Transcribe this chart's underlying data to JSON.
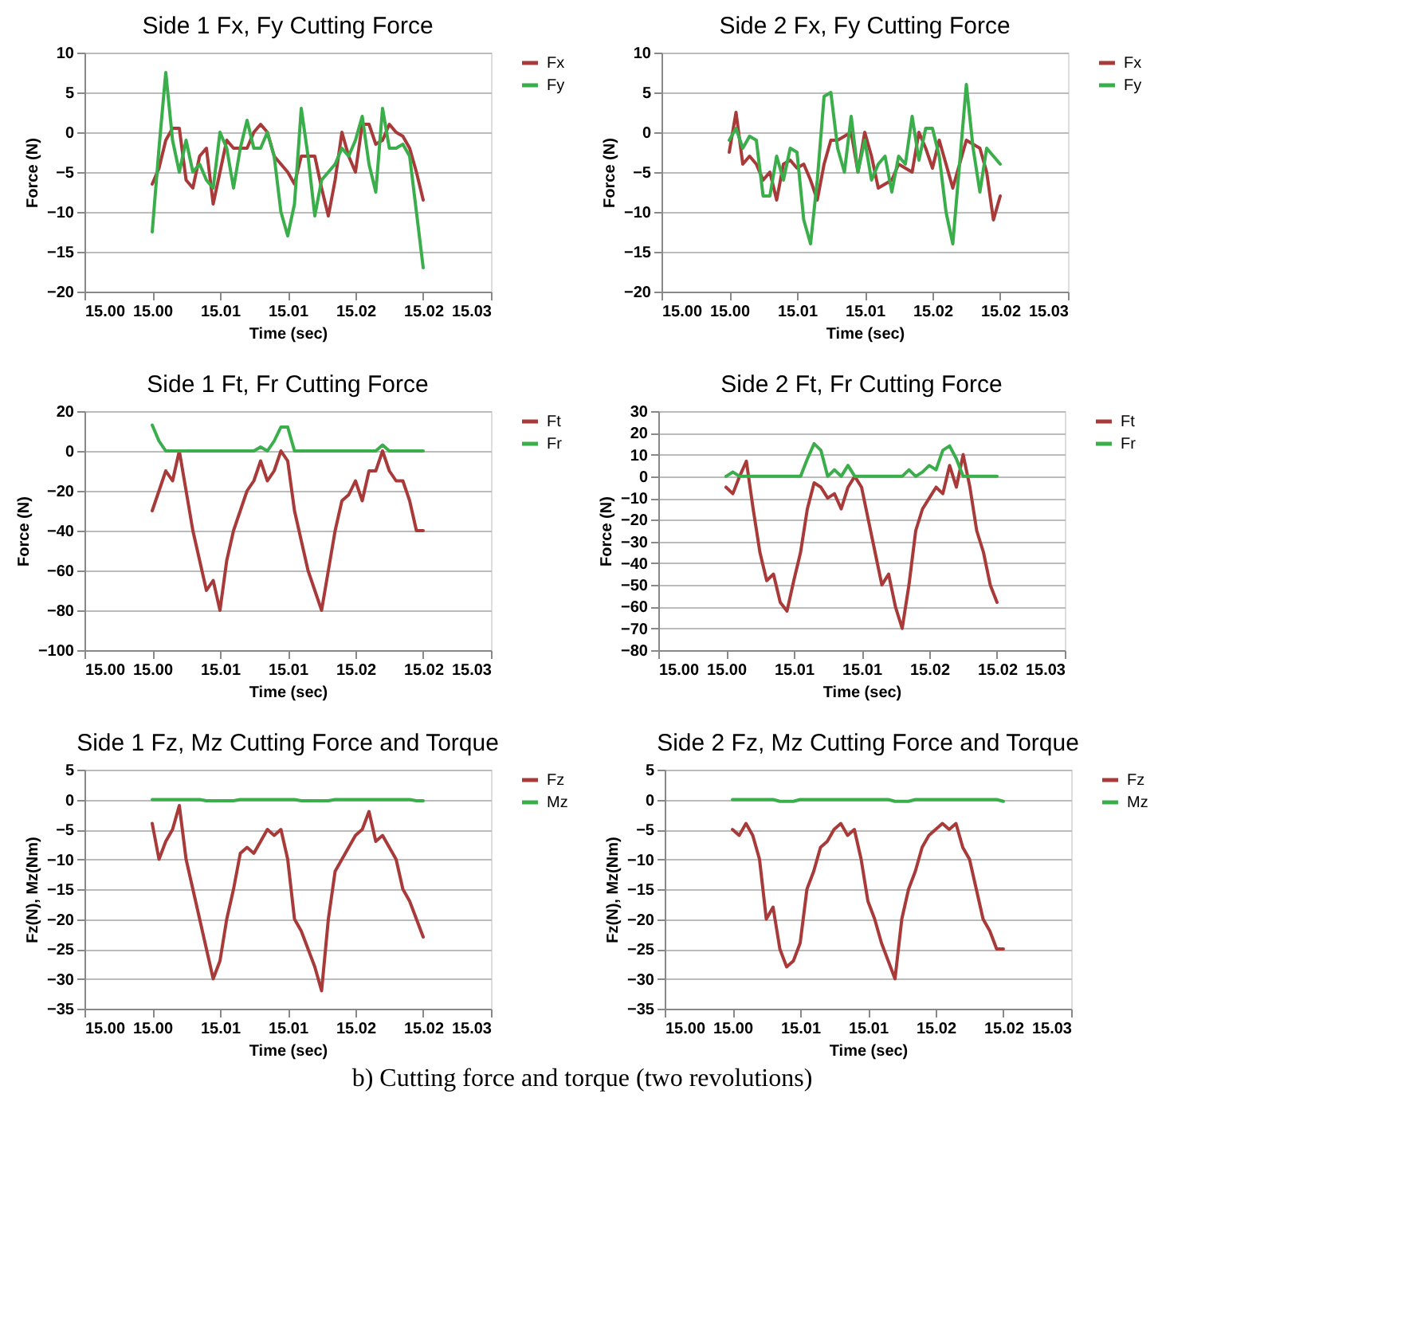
{
  "chart_data": [
    {
      "type": "line",
      "title": "Side 1 Fx, Fy Cutting Force",
      "xlabel": "Time (sec)",
      "ylabel": "Force (N)",
      "xlim": [
        14.995,
        15.025
      ],
      "xticks": [
        {
          "value": 14.995,
          "label": "15.00"
        },
        {
          "value": 15.0,
          "label": "15.00"
        },
        {
          "value": 15.005,
          "label": "15.01"
        },
        {
          "value": 15.01,
          "label": "15.01"
        },
        {
          "value": 15.015,
          "label": "15.02"
        },
        {
          "value": 15.02,
          "label": "15.02"
        },
        {
          "value": 15.025,
          "label": "15.03"
        }
      ],
      "ylim": [
        -20,
        10
      ],
      "yticks": [
        -20,
        -15,
        -10,
        -5,
        0,
        5,
        10
      ],
      "grid": "y",
      "legend": "right",
      "x": [
        15.0,
        15.0005,
        15.001,
        15.0015,
        15.002,
        15.0025,
        15.003,
        15.0035,
        15.004,
        15.0045,
        15.005,
        15.0055,
        15.006,
        15.0065,
        15.007,
        15.0075,
        15.008,
        15.0085,
        15.009,
        15.0095,
        15.01,
        15.0105,
        15.011,
        15.0115,
        15.012,
        15.0125,
        15.013,
        15.0135,
        15.014,
        15.0145,
        15.015,
        15.0155,
        15.016,
        15.0165,
        15.017,
        15.0175,
        15.018,
        15.0185,
        15.019,
        15.0195,
        15.02
      ],
      "series": [
        {
          "name": "Fx",
          "color": "#a83a3a",
          "values": [
            -6.5,
            -4.5,
            -1,
            0.5,
            0.5,
            -6,
            -7,
            -3,
            -2,
            -9,
            -5,
            -1,
            -2,
            -2,
            -2,
            0,
            1,
            0,
            -3,
            -4,
            -5,
            -6.5,
            -3,
            -3,
            -3,
            -7,
            -10.5,
            -6,
            0,
            -3,
            -5,
            1,
            1,
            -1.5,
            -1,
            1,
            0,
            -0.5,
            -2,
            -5,
            -8.5
          ]
        },
        {
          "name": "Fy",
          "color": "#3aae4a",
          "values": [
            -12.5,
            -2,
            7.5,
            -1,
            -5,
            -1,
            -5,
            -4,
            -6,
            -7,
            0,
            -2,
            -7,
            -2,
            1.5,
            -2,
            -2,
            0,
            -3,
            -10,
            -13,
            -9,
            3,
            -3,
            -10.5,
            -6,
            -5,
            -4,
            -2,
            -3,
            -1,
            2,
            -4,
            -7.5,
            3,
            -2,
            -2,
            -1.5,
            -3,
            -10,
            -17
          ]
        }
      ]
    },
    {
      "type": "line",
      "title": "Side 2 Fx, Fy Cutting Force",
      "xlabel": "Time (sec)",
      "ylabel": "Force (N)",
      "xlim": [
        14.995,
        15.025
      ],
      "xticks": [
        {
          "value": 14.995,
          "label": "15.00"
        },
        {
          "value": 15.0,
          "label": "15.00"
        },
        {
          "value": 15.005,
          "label": "15.01"
        },
        {
          "value": 15.01,
          "label": "15.01"
        },
        {
          "value": 15.015,
          "label": "15.02"
        },
        {
          "value": 15.02,
          "label": "15.02"
        },
        {
          "value": 15.025,
          "label": "15.03"
        }
      ],
      "ylim": [
        -20,
        10
      ],
      "yticks": [
        -20,
        -15,
        -10,
        -5,
        0,
        5,
        10
      ],
      "grid": "y",
      "legend": "right",
      "x": [
        15.0,
        15.0005,
        15.001,
        15.0015,
        15.002,
        15.0025,
        15.003,
        15.0035,
        15.004,
        15.0045,
        15.005,
        15.0055,
        15.006,
        15.0065,
        15.007,
        15.0075,
        15.008,
        15.0085,
        15.009,
        15.0095,
        15.01,
        15.0105,
        15.011,
        15.0115,
        15.012,
        15.0125,
        15.013,
        15.0135,
        15.014,
        15.0145,
        15.015,
        15.0155,
        15.016,
        15.0165,
        15.017,
        15.0175,
        15.018,
        15.0185,
        15.019,
        15.0195,
        15.02
      ],
      "series": [
        {
          "name": "Fx",
          "color": "#a83a3a",
          "values": [
            -2.5,
            2.5,
            -4,
            -3,
            -4,
            -6,
            -5,
            -8.5,
            -4,
            -3.5,
            -4.5,
            -4,
            -6,
            -8.5,
            -4,
            -1,
            -1,
            -0.5,
            0,
            -5,
            0,
            -3,
            -7,
            -6.5,
            -6,
            -4,
            -4.5,
            -5,
            0,
            -2,
            -4.5,
            -1,
            -4,
            -7,
            -4,
            -1,
            -1.5,
            -2,
            -5,
            -11,
            -8
          ]
        },
        {
          "name": "Fy",
          "color": "#3aae4a",
          "values": [
            -1,
            0.5,
            -2,
            -0.5,
            -1,
            -8,
            -8,
            -3,
            -6,
            -2,
            -2.5,
            -11,
            -14,
            -6,
            4.5,
            5,
            -2,
            -5,
            2,
            -5,
            -1,
            -6,
            -4,
            -3,
            -7.5,
            -3,
            -4,
            2,
            -3.5,
            0.5,
            0.5,
            -3,
            -10,
            -14,
            -4,
            6,
            -2,
            -7.5,
            -2,
            -3,
            -4
          ]
        }
      ]
    },
    {
      "type": "line",
      "title": "Side 1 Ft, Fr Cutting Force",
      "xlabel": "Time (sec)",
      "ylabel": "Force (N)",
      "xlim": [
        14.995,
        15.025
      ],
      "xticks": [
        {
          "value": 14.995,
          "label": "15.00"
        },
        {
          "value": 15.0,
          "label": "15.00"
        },
        {
          "value": 15.005,
          "label": "15.01"
        },
        {
          "value": 15.01,
          "label": "15.01"
        },
        {
          "value": 15.015,
          "label": "15.02"
        },
        {
          "value": 15.02,
          "label": "15.02"
        },
        {
          "value": 15.025,
          "label": "15.03"
        }
      ],
      "ylim": [
        -100,
        20
      ],
      "yticks": [
        -100,
        -80,
        -60,
        -40,
        -20,
        0,
        20
      ],
      "grid": "y",
      "legend": "right",
      "x": [
        15.0,
        15.0005,
        15.001,
        15.0015,
        15.002,
        15.0025,
        15.003,
        15.0035,
        15.004,
        15.0045,
        15.005,
        15.0055,
        15.006,
        15.0065,
        15.007,
        15.0075,
        15.008,
        15.0085,
        15.009,
        15.0095,
        15.01,
        15.0105,
        15.011,
        15.0115,
        15.012,
        15.0125,
        15.013,
        15.0135,
        15.014,
        15.0145,
        15.015,
        15.0155,
        15.016,
        15.0165,
        15.017,
        15.0175,
        15.018,
        15.0185,
        15.019,
        15.0195,
        15.02
      ],
      "series": [
        {
          "name": "Ft",
          "color": "#a83a3a",
          "values": [
            -30,
            -20,
            -10,
            -15,
            0,
            -20,
            -40,
            -55,
            -70,
            -65,
            -80,
            -55,
            -40,
            -30,
            -20,
            -15,
            -5,
            -15,
            -10,
            0,
            -5,
            -30,
            -45,
            -60,
            -70,
            -80,
            -60,
            -40,
            -25,
            -22,
            -15,
            -25,
            -10,
            -10,
            0,
            -10,
            -15,
            -15,
            -25,
            -40,
            -40
          ]
        },
        {
          "name": "Fr",
          "color": "#3aae4a",
          "values": [
            13,
            5,
            0,
            0,
            0,
            0,
            0,
            0,
            0,
            0,
            0,
            0,
            0,
            0,
            0,
            0,
            2,
            0,
            5,
            12,
            12,
            0,
            0,
            0,
            0,
            0,
            0,
            0,
            0,
            0,
            0,
            0,
            0,
            0,
            3,
            0,
            0,
            0,
            0,
            0,
            0
          ]
        }
      ]
    },
    {
      "type": "line",
      "title": "Side 2 Ft, Fr Cutting Force",
      "xlabel": "Time (sec)",
      "ylabel": "Force (N)",
      "xlim": [
        14.995,
        15.025
      ],
      "xticks": [
        {
          "value": 14.995,
          "label": "15.00"
        },
        {
          "value": 15.0,
          "label": "15.00"
        },
        {
          "value": 15.005,
          "label": "15.01"
        },
        {
          "value": 15.01,
          "label": "15.01"
        },
        {
          "value": 15.015,
          "label": "15.02"
        },
        {
          "value": 15.02,
          "label": "15.02"
        },
        {
          "value": 15.025,
          "label": "15.03"
        }
      ],
      "ylim": [
        -80,
        30
      ],
      "yticks": [
        -80,
        -70,
        -60,
        -50,
        -40,
        -30,
        -20,
        -10,
        0,
        10,
        20,
        30
      ],
      "grid": "y",
      "legend": "right",
      "x": [
        15.0,
        15.0005,
        15.001,
        15.0015,
        15.002,
        15.0025,
        15.003,
        15.0035,
        15.004,
        15.0045,
        15.005,
        15.0055,
        15.006,
        15.0065,
        15.007,
        15.0075,
        15.008,
        15.0085,
        15.009,
        15.0095,
        15.01,
        15.0105,
        15.011,
        15.0115,
        15.012,
        15.0125,
        15.013,
        15.0135,
        15.014,
        15.0145,
        15.015,
        15.0155,
        15.016,
        15.0165,
        15.017,
        15.0175,
        15.018,
        15.0185,
        15.019,
        15.0195,
        15.02
      ],
      "series": [
        {
          "name": "Ft",
          "color": "#a83a3a",
          "values": [
            -5,
            -8,
            0,
            7,
            -15,
            -35,
            -48,
            -45,
            -58,
            -62,
            -48,
            -35,
            -15,
            -3,
            -5,
            -10,
            -8,
            -15,
            -5,
            0,
            -5,
            -20,
            -35,
            -50,
            -45,
            -60,
            -70,
            -50,
            -25,
            -15,
            -10,
            -5,
            -8,
            5,
            -5,
            10,
            -5,
            -25,
            -35,
            -50,
            -58
          ]
        },
        {
          "name": "Fr",
          "color": "#3aae4a",
          "values": [
            0,
            2,
            0,
            0,
            0,
            0,
            0,
            0,
            0,
            0,
            0,
            0,
            8,
            15,
            12,
            0,
            3,
            0,
            5,
            0,
            0,
            0,
            0,
            0,
            0,
            0,
            0,
            3,
            0,
            2,
            5,
            3,
            12,
            14,
            8,
            0,
            0,
            0,
            0,
            0,
            0
          ]
        }
      ]
    },
    {
      "type": "line",
      "title": "Side 1 Fz, Mz Cutting Force and Torque",
      "xlabel": "Time (sec)",
      "ylabel": "Fz(N), Mz(Nm)",
      "xlim": [
        14.995,
        15.025
      ],
      "xticks": [
        {
          "value": 14.995,
          "label": "15.00"
        },
        {
          "value": 15.0,
          "label": "15.00"
        },
        {
          "value": 15.005,
          "label": "15.01"
        },
        {
          "value": 15.01,
          "label": "15.01"
        },
        {
          "value": 15.015,
          "label": "15.02"
        },
        {
          "value": 15.02,
          "label": "15.02"
        },
        {
          "value": 15.025,
          "label": "15.03"
        }
      ],
      "ylim": [
        -35,
        5
      ],
      "yticks": [
        -35,
        -30,
        -25,
        -20,
        -15,
        -10,
        -5,
        0,
        5
      ],
      "grid": "y",
      "legend": "right",
      "x": [
        15.0,
        15.0005,
        15.001,
        15.0015,
        15.002,
        15.0025,
        15.003,
        15.0035,
        15.004,
        15.0045,
        15.005,
        15.0055,
        15.006,
        15.0065,
        15.007,
        15.0075,
        15.008,
        15.0085,
        15.009,
        15.0095,
        15.01,
        15.0105,
        15.011,
        15.0115,
        15.012,
        15.0125,
        15.013,
        15.0135,
        15.014,
        15.0145,
        15.015,
        15.0155,
        15.016,
        15.0165,
        15.017,
        15.0175,
        15.018,
        15.0185,
        15.019,
        15.0195,
        15.02
      ],
      "series": [
        {
          "name": "Fz",
          "color": "#a83a3a",
          "values": [
            -4,
            -10,
            -7,
            -5,
            -1,
            -10,
            -15,
            -20,
            -25,
            -30,
            -27,
            -20,
            -15,
            -9,
            -8,
            -9,
            -7,
            -5,
            -6,
            -5,
            -10,
            -20,
            -22,
            -25,
            -28,
            -32,
            -20,
            -12,
            -10,
            -8,
            -6,
            -5,
            -2,
            -7,
            -6,
            -8,
            -10,
            -15,
            -17,
            -20,
            -23
          ]
        },
        {
          "name": "Mz",
          "color": "#3aae4a",
          "values": [
            0,
            0,
            0,
            0,
            0,
            0,
            0,
            0,
            -0.2,
            -0.2,
            -0.2,
            -0.2,
            -0.2,
            0,
            0,
            0,
            0,
            0,
            0,
            0,
            0,
            0,
            -0.2,
            -0.2,
            -0.2,
            -0.2,
            -0.2,
            0,
            0,
            0,
            0,
            0,
            0,
            0,
            0,
            0,
            0,
            0,
            0,
            -0.2,
            -0.2
          ]
        }
      ]
    },
    {
      "type": "line",
      "title": "Side 2 Fz, Mz Cutting Force and Torque",
      "xlabel": "Time (sec)",
      "ylabel": "Fz(N), Mz(Nm)",
      "xlim": [
        14.995,
        15.025
      ],
      "xticks": [
        {
          "value": 14.995,
          "label": "15.00"
        },
        {
          "value": 15.0,
          "label": "15.00"
        },
        {
          "value": 15.005,
          "label": "15.01"
        },
        {
          "value": 15.01,
          "label": "15.01"
        },
        {
          "value": 15.015,
          "label": "15.02"
        },
        {
          "value": 15.02,
          "label": "15.02"
        },
        {
          "value": 15.025,
          "label": "15.03"
        }
      ],
      "ylim": [
        -35,
        5
      ],
      "yticks": [
        -35,
        -30,
        -25,
        -20,
        -15,
        -10,
        -5,
        0,
        5
      ],
      "grid": "y",
      "legend": "right",
      "annotations": [
        "b) Cutting force and torque (two revolutions)"
      ],
      "x": [
        15.0,
        15.0005,
        15.001,
        15.0015,
        15.002,
        15.0025,
        15.003,
        15.0035,
        15.004,
        15.0045,
        15.005,
        15.0055,
        15.006,
        15.0065,
        15.007,
        15.0075,
        15.008,
        15.0085,
        15.009,
        15.0095,
        15.01,
        15.0105,
        15.011,
        15.0115,
        15.012,
        15.0125,
        15.013,
        15.0135,
        15.014,
        15.0145,
        15.015,
        15.0155,
        15.016,
        15.0165,
        15.017,
        15.0175,
        15.018,
        15.0185,
        15.019,
        15.0195,
        15.02
      ],
      "series": [
        {
          "name": "Fz",
          "color": "#a83a3a",
          "values": [
            -5,
            -6,
            -4,
            -6,
            -10,
            -20,
            -18,
            -25,
            -28,
            -27,
            -24,
            -15,
            -12,
            -8,
            -7,
            -5,
            -4,
            -6,
            -5,
            -10,
            -17,
            -20,
            -24,
            -27,
            -30,
            -20,
            -15,
            -12,
            -8,
            -6,
            -5,
            -4,
            -5,
            -4,
            -8,
            -10,
            -15,
            -20,
            -22,
            -25,
            -25
          ]
        },
        {
          "name": "Mz",
          "color": "#3aae4a",
          "values": [
            0,
            0,
            0,
            0,
            0,
            0,
            0,
            -0.3,
            -0.3,
            -0.3,
            0,
            0,
            0,
            0,
            0,
            0,
            0,
            0,
            0,
            0,
            0,
            0,
            0,
            0,
            -0.3,
            -0.3,
            -0.3,
            0,
            0,
            0,
            0,
            0,
            0,
            0,
            0,
            0,
            0,
            0,
            0,
            0,
            -0.3
          ]
        }
      ]
    }
  ]
}
